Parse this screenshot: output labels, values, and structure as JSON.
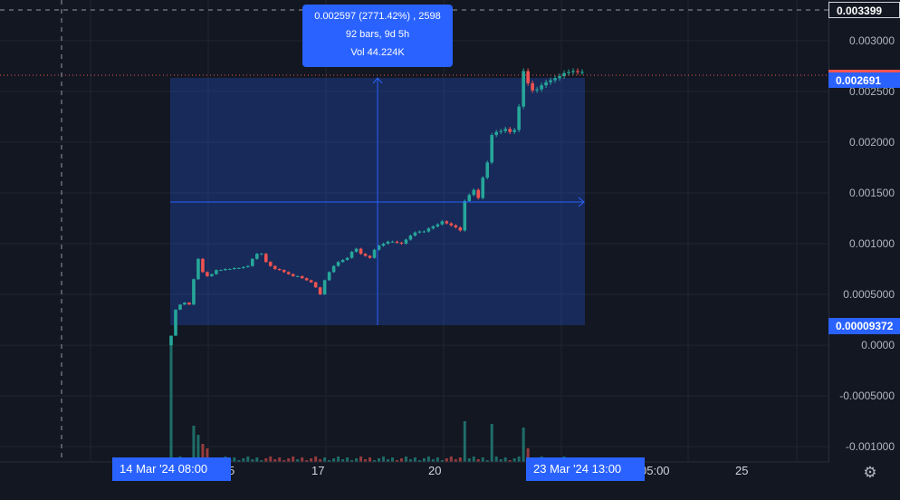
{
  "price_scale": {
    "ticks": [
      "0.003000",
      "0.002500",
      "0.002000",
      "0.001500",
      "0.001000",
      "0.0005000",
      "0.0000",
      "-0.0005000",
      "-0.001000"
    ],
    "top_label": "0.003399",
    "current_price_label": "0.002691",
    "low_label": "0.00009372"
  },
  "time_scale": {
    "ticks": [
      "5",
      "17",
      "20",
      "05:00",
      "25"
    ],
    "start_label": "14 Mar '24  08:00",
    "end_label": "23 Mar '24  13:00"
  },
  "measure_tooltip": {
    "line1": "0.002597 (2771.42%) , 2598",
    "line2": "92 bars, 9d 5h",
    "line3": "Vol 44.224K"
  },
  "colors": {
    "background": "#131722",
    "up": "#26a69a",
    "down": "#ef5350",
    "accent": "#2962ff",
    "grid": "#1f2430"
  },
  "icons": {
    "settings": "gear-icon"
  },
  "chart_data": {
    "type": "candlestick",
    "title": "",
    "xlabel": "",
    "ylabel": "",
    "ylim": [
      -0.00115,
      0.0034
    ],
    "candles_close": [
      9.372e-05,
      0.00035,
      0.0004,
      0.00042,
      0.0004,
      0.00065,
      0.00085,
      0.00072,
      0.00068,
      0.0007,
      0.00074,
      0.00074,
      0.00075,
      0.00075,
      0.00076,
      0.00076,
      0.00077,
      0.00078,
      0.00085,
      0.0009,
      0.0009,
      0.00082,
      0.00078,
      0.00075,
      0.00074,
      0.00072,
      0.0007,
      0.00068,
      0.00068,
      0.00066,
      0.00064,
      0.00062,
      0.00057,
      0.0005,
      0.00064,
      0.00072,
      0.00078,
      0.00082,
      0.00084,
      0.00086,
      0.00092,
      0.00095,
      0.0009,
      0.00088,
      0.00086,
      0.00094,
      0.00098,
      0.001,
      0.00102,
      0.00102,
      0.00101,
      0.001,
      0.00104,
      0.00108,
      0.00111,
      0.00112,
      0.00112,
      0.00115,
      0.00117,
      0.00119,
      0.00122,
      0.0012,
      0.00118,
      0.00116,
      0.00113,
      0.00142,
      0.00148,
      0.00153,
      0.00145,
      0.00165,
      0.0018,
      0.00207,
      0.0021,
      0.00211,
      0.00213,
      0.0021,
      0.00212,
      0.00235,
      0.0027,
      0.00258,
      0.00251,
      0.00252,
      0.00256,
      0.00259,
      0.00261,
      0.00263,
      0.00265,
      0.00268,
      0.00269,
      0.0027,
      0.00269,
      0.002691
    ]
  }
}
